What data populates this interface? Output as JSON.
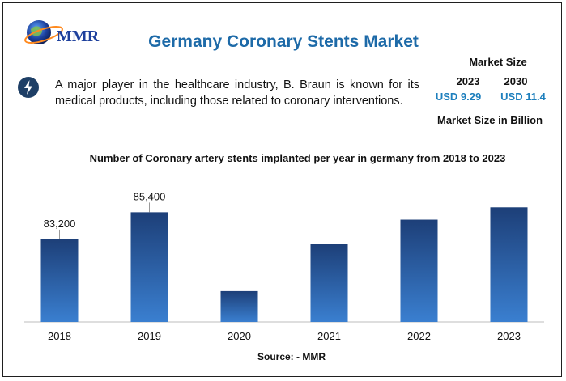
{
  "header": {
    "logo_text": "MMR",
    "title": "Germany Coronary Stents Market"
  },
  "info": {
    "icon": "lightning-bolt-icon",
    "text": "A major player in the healthcare industry, B. Braun is known for its medical products, including those related to coronary interventions."
  },
  "market_size": {
    "title": "Market Size",
    "years": [
      "2023",
      "2030"
    ],
    "values": [
      "USD 9.29",
      "USD 11.4"
    ],
    "unit_label": "Market Size in Billion"
  },
  "colors": {
    "title": "#1d6aa8",
    "value": "#1d7fbd",
    "bar_top": "#1d3f78",
    "bar_bottom": "#3a7fd0"
  },
  "chart_data": {
    "type": "bar",
    "title": "Number of Coronary artery stents implanted per year in germany from 2018 to 2023",
    "categories": [
      "2018",
      "2019",
      "2020",
      "2021",
      "2022",
      "2023"
    ],
    "values": [
      83200,
      85400,
      79000,
      82800,
      84800,
      85800
    ],
    "data_labels": [
      "83,200",
      "85,400",
      "",
      "",
      "",
      ""
    ],
    "ylim": [
      76500,
      87000
    ],
    "xlabel": "",
    "ylabel": "",
    "grid": false
  },
  "footer": {
    "source": "Source: - MMR"
  }
}
